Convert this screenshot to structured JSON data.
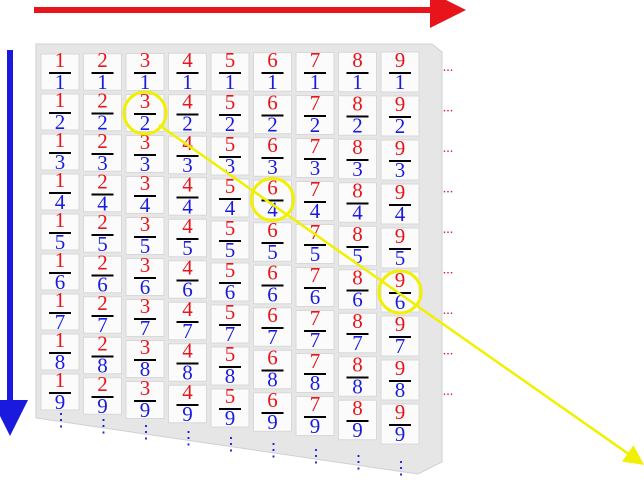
{
  "numerators": [
    "1",
    "2",
    "3",
    "4",
    "5",
    "6",
    "7",
    "8",
    "9"
  ],
  "denominators": [
    "1",
    "2",
    "3",
    "4",
    "5",
    "6",
    "7",
    "8",
    "9"
  ],
  "row_continuation": "...",
  "column_continuation": "⋮"
}
